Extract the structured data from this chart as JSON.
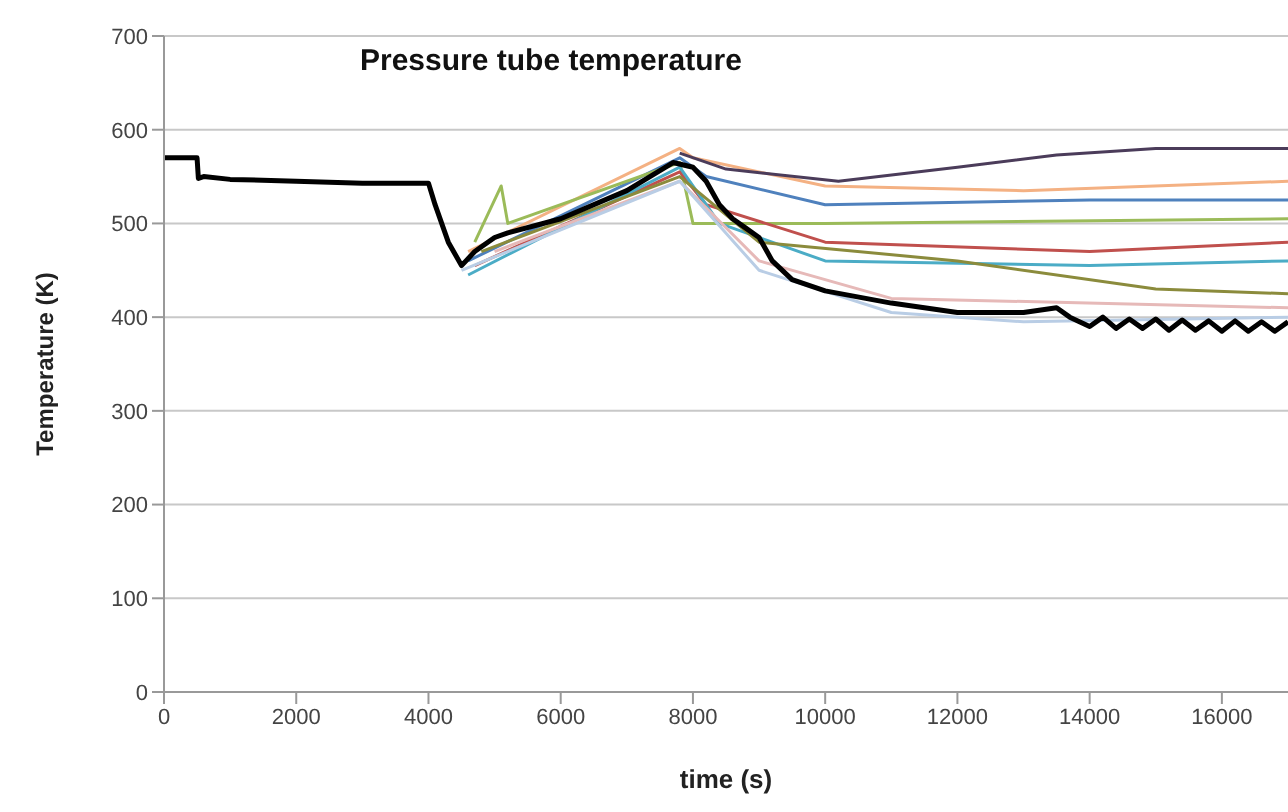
{
  "chart_data": {
    "type": "line",
    "title": "Pressure tube temperature",
    "xlabel": "time (s)",
    "ylabel": "Temperature (K)",
    "xlim": [
      0,
      17000
    ],
    "xticks": [
      0,
      2000,
      4000,
      6000,
      8000,
      10000,
      12000,
      14000,
      16000
    ],
    "ylim": [
      0,
      700
    ],
    "yticks": [
      0,
      100,
      200,
      300,
      400,
      500,
      600,
      700
    ],
    "grid": "y",
    "marker": "none",
    "line_style": "solid",
    "series": [
      {
        "color": "#f4b183",
        "x": [
          4600,
          7800,
          8000,
          10000,
          13000,
          17000
        ],
        "values": [
          470,
          580,
          570,
          540,
          535,
          545
        ]
      },
      {
        "color": "#4f81bd",
        "x": [
          4600,
          7800,
          8200,
          10000,
          14000,
          17000
        ],
        "values": [
          460,
          570,
          550,
          520,
          525,
          525
        ]
      },
      {
        "color": "#9bbb59",
        "x": [
          4700,
          5100,
          5200,
          7800,
          8000,
          10000,
          17000
        ],
        "values": [
          480,
          540,
          500,
          565,
          500,
          500,
          505
        ]
      },
      {
        "color": "#c0504d",
        "x": [
          4700,
          7800,
          8200,
          10000,
          14000,
          17000
        ],
        "values": [
          455,
          555,
          520,
          480,
          470,
          480
        ]
      },
      {
        "color": "#4bacc6",
        "x": [
          4600,
          7800,
          8400,
          10000,
          14000,
          17000
        ],
        "values": [
          445,
          560,
          500,
          460,
          455,
          460
        ]
      },
      {
        "color": "#8b8b3c",
        "x": [
          4800,
          7800,
          9000,
          12000,
          15000,
          17000
        ],
        "values": [
          470,
          550,
          480,
          460,
          430,
          425
        ]
      },
      {
        "color": "#e6b9b8",
        "x": [
          5000,
          7800,
          9000,
          11000,
          17000
        ],
        "values": [
          470,
          545,
          460,
          420,
          410
        ]
      },
      {
        "color": "#b9cde5",
        "x": [
          4500,
          7800,
          9000,
          11000,
          13000,
          17000
        ],
        "values": [
          450,
          545,
          450,
          405,
          395,
          400
        ]
      },
      {
        "color": "#4b3c5a",
        "x": [
          7800,
          8500,
          10200,
          12000,
          13500,
          15000,
          17000
        ],
        "values": [
          575,
          558,
          545,
          560,
          573,
          580,
          580
        ]
      },
      {
        "color": "#000000",
        "x": [
          0,
          500,
          520,
          600,
          1000,
          2000,
          3000,
          4000,
          4100,
          4300,
          4500,
          4700,
          5000,
          5200,
          6000,
          7000,
          7700,
          8000,
          8200,
          8400,
          8600,
          8800,
          9000,
          9200,
          9500,
          10000,
          11000,
          12000,
          13000,
          13500,
          13700,
          14000,
          14200,
          14400,
          14600,
          14800,
          15000,
          15200,
          15400,
          15600,
          15800,
          16000,
          16200,
          16400,
          16600,
          16800,
          17000
        ],
        "values": [
          570,
          570,
          548,
          550,
          547,
          545,
          543,
          543,
          520,
          480,
          455,
          470,
          485,
          490,
          505,
          535,
          565,
          560,
          545,
          520,
          505,
          495,
          485,
          460,
          440,
          428,
          415,
          405,
          405,
          410,
          400,
          390,
          400,
          388,
          398,
          388,
          398,
          386,
          397,
          386,
          396,
          385,
          396,
          385,
          395,
          385,
          395
        ]
      }
    ]
  }
}
